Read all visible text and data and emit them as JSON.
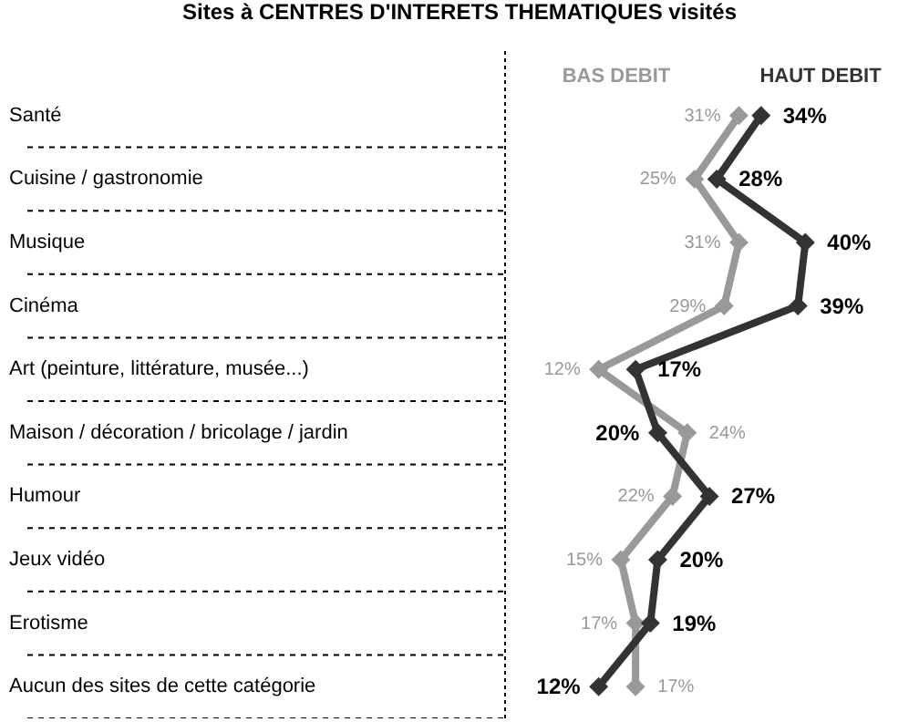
{
  "chart_data": {
    "type": "line",
    "orientation": "horizontal",
    "title": "Sites à CENTRES D'INTERETS THEMATIQUES visités",
    "categories": [
      "Santé",
      "Cuisine / gastronomie",
      "Musique",
      "Cinéma",
      "Art (peinture, littérature, musée...)",
      "Maison / décoration / bricolage / jardin",
      "Humour",
      "Jeux vidéo",
      "Erotisme",
      "Aucun des sites de cette catégorie"
    ],
    "series": [
      {
        "name": "BAS DEBIT",
        "color": "#999999",
        "values": [
          31,
          25,
          31,
          29,
          12,
          24,
          22,
          15,
          17,
          17
        ],
        "value_labels": [
          "31%",
          "25%",
          "31%",
          "29%",
          "12%",
          "24%",
          "22%",
          "15%",
          "17%",
          "17%"
        ]
      },
      {
        "name": "HAUT DEBIT",
        "color": "#333333",
        "values": [
          34,
          28,
          40,
          39,
          17,
          20,
          27,
          20,
          19,
          12
        ],
        "value_labels": [
          "34%",
          "28%",
          "40%",
          "39%",
          "17%",
          "20%",
          "27%",
          "20%",
          "19%",
          "12%"
        ]
      }
    ],
    "marker": "diamond",
    "line_style": "solid",
    "grid": "y"
  }
}
